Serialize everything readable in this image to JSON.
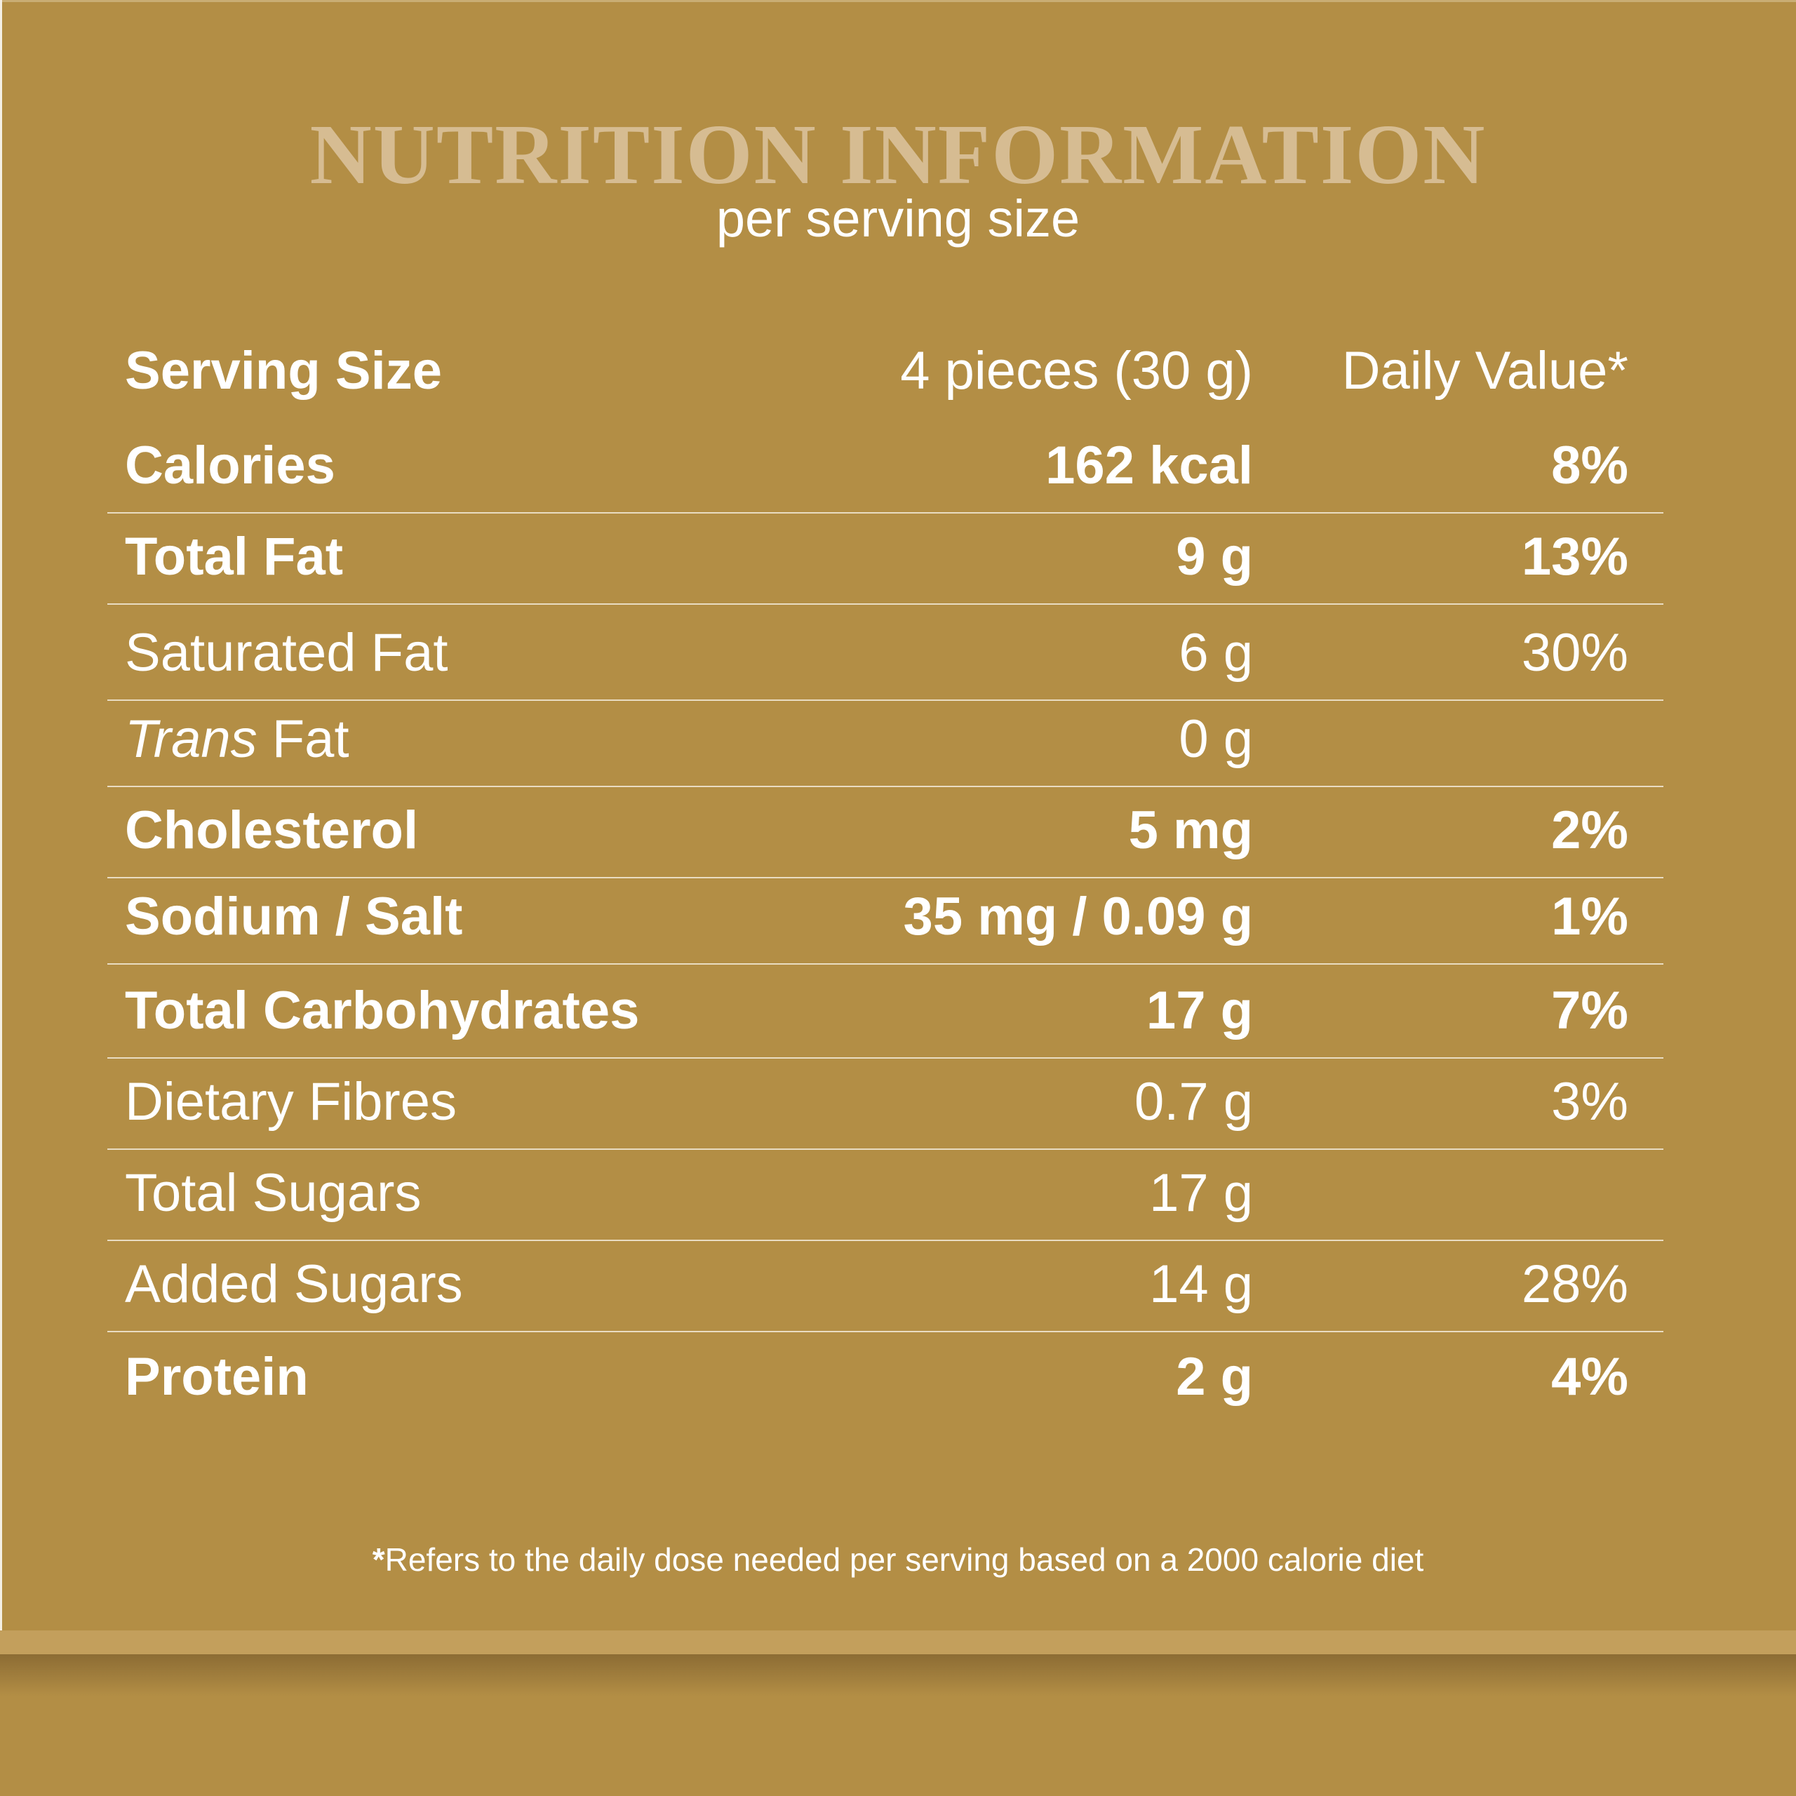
{
  "header": {
    "title": "NUTRITION INFORMATION",
    "subtitle": "per serving size"
  },
  "serving": {
    "label": "Serving Size",
    "amount": "4 pieces (30 g)",
    "daily_value_label": "Daily Value*"
  },
  "rows": [
    {
      "name": "Calories",
      "amount": "162 kcal",
      "dv": "8%",
      "bold": true
    },
    {
      "name": "Total Fat",
      "amount": "9 g",
      "dv": "13%",
      "bold": true
    },
    {
      "name": "Saturated Fat",
      "amount": "6 g",
      "dv": "30%",
      "bold": false
    },
    {
      "name_italic": "Trans",
      "name": " Fat",
      "amount": "0 g",
      "dv": "",
      "bold": false
    },
    {
      "name": "Cholesterol",
      "amount": "5 mg",
      "dv": "2%",
      "bold": true
    },
    {
      "name": "Sodium / Salt",
      "amount": "35 mg / 0.09 g",
      "dv": "1%",
      "bold": true
    },
    {
      "name": "Total Carbohydrates",
      "amount": "17 g",
      "dv": "7%",
      "bold": true
    },
    {
      "name": "Dietary Fibres",
      "amount": "0.7 g",
      "dv": "3%",
      "bold": false
    },
    {
      "name": "Total Sugars",
      "amount": "17 g",
      "dv": "",
      "bold": false
    },
    {
      "name": "Added Sugars",
      "amount": "14 g",
      "dv": "28%",
      "bold": false
    },
    {
      "name": "Protein",
      "amount": "2 g",
      "dv": "4%",
      "bold": true
    }
  ],
  "footnote": {
    "star": "*",
    "text": "Refers to the daily dose needed per serving based on a 2000 calorie diet"
  },
  "colors": {
    "background": "#b38e45",
    "title": "#d6bc92",
    "text": "#ffffff"
  }
}
